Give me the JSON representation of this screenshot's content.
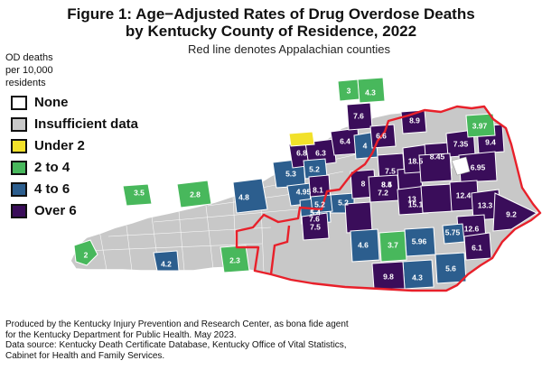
{
  "title_line1": "Figure 1: Age−Adjusted Rates of Drug Overdose Deaths",
  "title_line2": "by Kentucky County of Residence, 2022",
  "subtitle": "Red line denotes Appalachian counties",
  "legend_title": [
    "OD deaths",
    "per 10,000",
    "residents"
  ],
  "legend": [
    {
      "label": "None",
      "color": "#ffffff"
    },
    {
      "label": "Insufficient data",
      "color": "#c8c8c8"
    },
    {
      "label": "Under 2",
      "color": "#f2e12a"
    },
    {
      "label": "2 to 4",
      "color": "#48b85c"
    },
    {
      "label": "4 to 6",
      "color": "#2c5e8e"
    },
    {
      "label": "Over 6",
      "color": "#3a0d5a"
    }
  ],
  "county_values": [
    {
      "value": "2",
      "category": "2 to 4"
    },
    {
      "value": "4.2",
      "category": "4 to 6"
    },
    {
      "value": "3.5",
      "category": "2 to 4"
    },
    {
      "value": "2.8",
      "category": "2 to 4"
    },
    {
      "value": "2.3",
      "category": "2 to 4"
    },
    {
      "value": "4.8",
      "category": "4 to 6"
    },
    {
      "value": "5.3",
      "category": "4 to 6"
    },
    {
      "value": "4.95",
      "category": "4 to 6"
    },
    {
      "value": "6.8",
      "category": "Over 6"
    },
    {
      "value": "6.3",
      "category": "Over 6"
    },
    {
      "value": "6.4",
      "category": "Over 6"
    },
    {
      "value": "5.2",
      "category": "4 to 6"
    },
    {
      "value": "5.2",
      "category": "4 to 6"
    },
    {
      "value": "4",
      "category": "4 to 6"
    },
    {
      "value": "7.6",
      "category": "Over 6"
    },
    {
      "value": "3",
      "category": "2 to 4"
    },
    {
      "value": "4.3",
      "category": "4 to 6"
    },
    {
      "value": "6.6",
      "category": "Over 6"
    },
    {
      "value": "8.9",
      "category": "Over 6"
    },
    {
      "value": "8.1",
      "category": "Over 6"
    },
    {
      "value": "5.4",
      "category": "4 to 6"
    },
    {
      "value": "5.2",
      "category": "4 to 6"
    },
    {
      "value": "8",
      "category": "Over 6"
    },
    {
      "value": "7.5",
      "category": "Over 6"
    },
    {
      "value": "7.6",
      "category": "Over 6"
    },
    {
      "value": "7.5",
      "category": "Over 6"
    },
    {
      "value": "8.5",
      "category": "Over 6"
    },
    {
      "value": "18.5",
      "category": "Over 6"
    },
    {
      "value": "8.45",
      "category": "Over 6"
    },
    {
      "value": "7.35",
      "category": "Over 6"
    },
    {
      "value": "9.4",
      "category": "Over 6"
    },
    {
      "value": "3.97",
      "category": "2 to 4"
    },
    {
      "value": "6.95",
      "category": "Over 6"
    },
    {
      "value": "8.4",
      "category": "Over 6"
    },
    {
      "value": "7.2",
      "category": "Over 6"
    },
    {
      "value": "13",
      "category": "Over 6"
    },
    {
      "value": "15.1",
      "category": "Over 6"
    },
    {
      "value": "12.4",
      "category": "Over 6"
    },
    {
      "value": "13.3",
      "category": "Over 6"
    },
    {
      "value": "9.2",
      "category": "Over 6"
    },
    {
      "value": "12.6",
      "category": "Over 6"
    },
    {
      "value": "6.1",
      "category": "Over 6"
    },
    {
      "value": "5.75",
      "category": "4 to 6"
    },
    {
      "value": "5.96",
      "category": "4 to 6"
    },
    {
      "value": "4.6",
      "category": "4 to 6"
    },
    {
      "value": "3.7",
      "category": "2 to 4"
    },
    {
      "value": "5.6",
      "category": "4 to 6"
    },
    {
      "value": "4.3",
      "category": "4 to 6"
    },
    {
      "value": "9.8",
      "category": "Over 6"
    }
  ],
  "footer": [
    "Produced by the Kentucky Injury Prevention and Research Center, as bona fide agent",
    "for the Kentucky Department for Public Health. May 2023.",
    "Data source: Kentucky Death Certificate Database, Kentucky Office of Vital Statistics,",
    "Cabinet for Health and Family Services."
  ]
}
